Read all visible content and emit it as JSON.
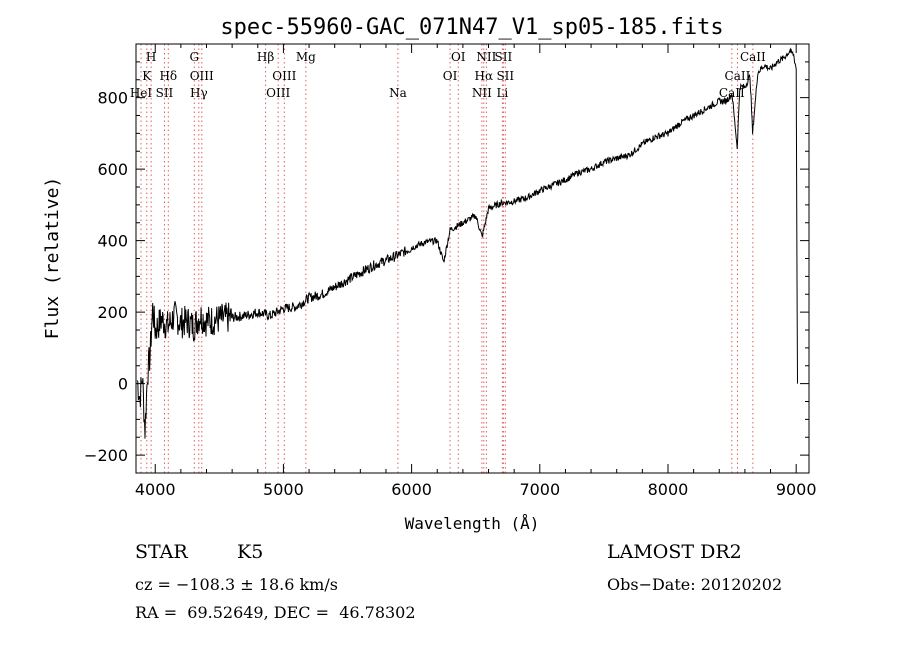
{
  "chart_data": {
    "type": "line",
    "title": "spec-55960-GAC_071N47_V1_sp05-185.fits",
    "xlabel": "Wavelength (Å)",
    "ylabel": "Flux (relative)",
    "xlim": [
      3850,
      9100
    ],
    "ylim": [
      -250,
      950
    ],
    "xticks": [
      4000,
      5000,
      6000,
      7000,
      8000,
      9000
    ],
    "yticks": [
      -200,
      0,
      200,
      400,
      600,
      800
    ],
    "grid": false,
    "line_color": "#000000",
    "marker_color": "#e06060",
    "series": [
      {
        "x": [
          3860,
          3880,
          3900,
          3920,
          3940,
          3960,
          3980,
          4000,
          4050,
          4100,
          4150,
          4200,
          4250,
          4300,
          4350,
          4400,
          4500,
          4600,
          4700,
          4800,
          4900,
          5000,
          5100,
          5200,
          5300,
          5400,
          5500,
          5600,
          5700,
          5800,
          5900,
          6000,
          6100,
          6200,
          6250,
          6300,
          6400,
          6500,
          6550,
          6600,
          6700,
          6800,
          6900,
          7000,
          7100,
          7200,
          7300,
          7400,
          7500,
          7600,
          7700,
          7800,
          7900,
          8000,
          8100,
          8200,
          8300,
          8400,
          8450,
          8500,
          8540,
          8560,
          8600,
          8640,
          8660,
          8700,
          8750,
          8800,
          8850,
          8900,
          8950,
          8980,
          9000,
          9010
        ],
        "y": [
          10,
          -40,
          20,
          -130,
          30,
          80,
          210,
          150,
          180,
          160,
          190,
          170,
          175,
          160,
          190,
          175,
          180,
          185,
          190,
          200,
          190,
          210,
          215,
          240,
          250,
          270,
          290,
          310,
          330,
          345,
          360,
          380,
          395,
          400,
          340,
          430,
          450,
          470,
          410,
          490,
          505,
          510,
          520,
          540,
          555,
          570,
          590,
          600,
          620,
          630,
          640,
          670,
          690,
          700,
          730,
          750,
          770,
          790,
          790,
          810,
          660,
          830,
          830,
          860,
          700,
          870,
          890,
          880,
          900,
          910,
          930,
          920,
          880,
          0
        ]
      }
    ],
    "line_markers": [
      {
        "label": "HeI",
        "wavelength": 3889,
        "row": 2
      },
      {
        "label": "K",
        "wavelength": 3934,
        "row": 1
      },
      {
        "label": "H",
        "wavelength": 3968,
        "row": 0
      },
      {
        "label": "SII",
        "wavelength": 4072,
        "row": 2
      },
      {
        "label": "Hδ",
        "wavelength": 4102,
        "row": 1
      },
      {
        "label": "G",
        "wavelength": 4305,
        "row": 0
      },
      {
        "label": "Hγ",
        "wavelength": 4340,
        "row": 2
      },
      {
        "label": "OIII",
        "wavelength": 4363,
        "row": 1
      },
      {
        "label": "Hβ",
        "wavelength": 4861,
        "row": 0
      },
      {
        "label": "OIII",
        "wavelength": 4959,
        "row": 2
      },
      {
        "label": "OIII",
        "wavelength": 5007,
        "row": 1
      },
      {
        "label": "Mg",
        "wavelength": 5175,
        "row": 0
      },
      {
        "label": "Na",
        "wavelength": 5893,
        "row": 2
      },
      {
        "label": "OI",
        "wavelength": 6300,
        "row": 1
      },
      {
        "label": "OI",
        "wavelength": 6364,
        "row": 0
      },
      {
        "label": "NII",
        "wavelength": 6548,
        "row": 2
      },
      {
        "label": "Hα",
        "wavelength": 6563,
        "row": 1
      },
      {
        "label": "NII",
        "wavelength": 6583,
        "row": 0
      },
      {
        "label": "Li",
        "wavelength": 6708,
        "row": 2
      },
      {
        "label": "SII",
        "wavelength": 6716,
        "row": 0
      },
      {
        "label": "SII",
        "wavelength": 6731,
        "row": 1
      },
      {
        "label": "CaII",
        "wavelength": 8498,
        "row": 2
      },
      {
        "label": "CaII",
        "wavelength": 8542,
        "row": 1
      },
      {
        "label": "CaII",
        "wavelength": 8662,
        "row": 0
      }
    ]
  },
  "info": {
    "object_class": "STAR",
    "subclass": "K5",
    "survey": "LAMOST DR2",
    "cz": "cz = −108.3 ± 18.6 km/s",
    "obs_date": "Obs−Date: 20120202",
    "coords": "RA =  69.52649, DEC =  46.78302"
  }
}
